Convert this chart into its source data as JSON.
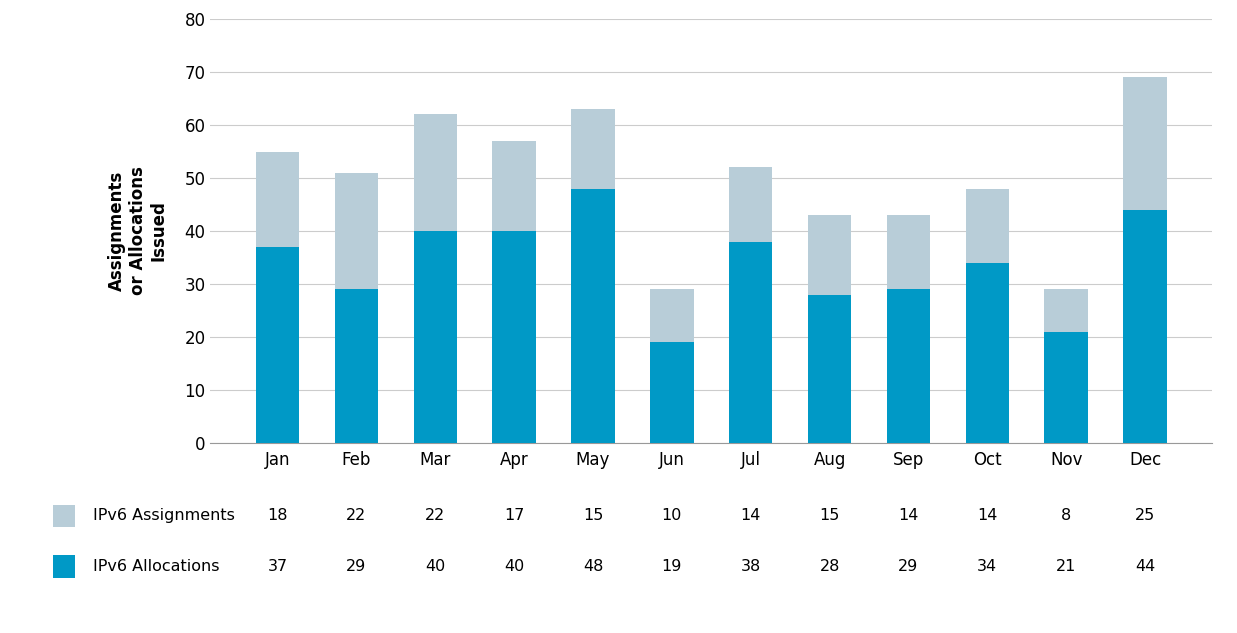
{
  "months": [
    "Jan",
    "Feb",
    "Mar",
    "Apr",
    "May",
    "Jun",
    "Jul",
    "Aug",
    "Sep",
    "Oct",
    "Nov",
    "Dec"
  ],
  "ipv6_allocations": [
    37,
    29,
    40,
    40,
    48,
    19,
    38,
    28,
    29,
    34,
    21,
    44
  ],
  "ipv6_assignments": [
    18,
    22,
    22,
    17,
    15,
    10,
    14,
    15,
    14,
    14,
    8,
    25
  ],
  "allocation_color": "#0099C6",
  "assignment_color": "#B8CDD8",
  "ylabel": "Assignments\nor Allocations\nIssued",
  "ylim": [
    0,
    80
  ],
  "yticks": [
    0,
    10,
    20,
    30,
    40,
    50,
    60,
    70,
    80
  ],
  "legend_labels": [
    "IPv6 Assignments",
    "IPv6 Allocations"
  ],
  "background_color": "#ffffff",
  "grid_color": "#cccccc"
}
